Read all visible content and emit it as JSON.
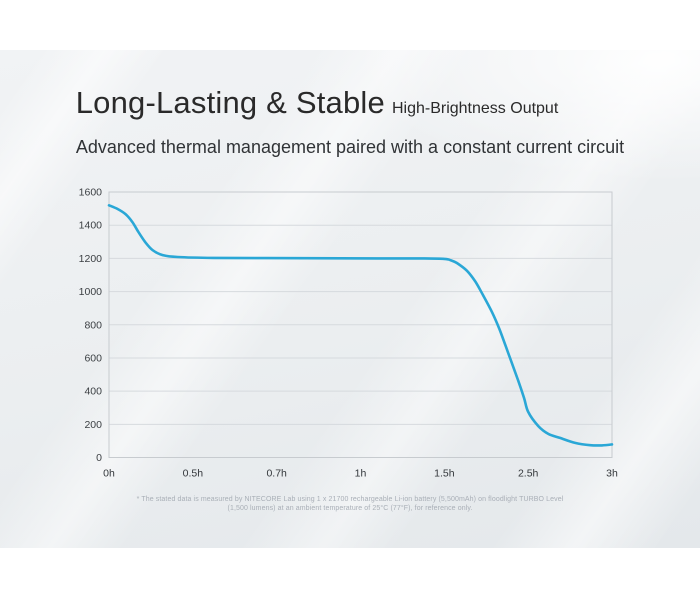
{
  "header": {
    "title": "Long-Lasting & Stable",
    "title_suffix": "High-Brightness Output",
    "subtitle": "Advanced thermal management paired with a constant current circuit"
  },
  "chart_data": {
    "type": "line",
    "title": "Long-Lasting & Stable High-Brightness Output",
    "xlabel": "",
    "ylabel": "",
    "ylim": [
      0,
      1600
    ],
    "grid": true,
    "legend_position": "none",
    "x_tick_labels": [
      "0h",
      "0.5h",
      "0.7h",
      "1h",
      "1.5h",
      "2.5h",
      "3h"
    ],
    "x_tick_hours": [
      0,
      0.5,
      0.7,
      1,
      1.5,
      2.5,
      3
    ],
    "y_ticks": [
      0,
      200,
      400,
      600,
      800,
      1000,
      1200,
      1400,
      1600
    ],
    "series": [
      {
        "name": "brightness-lumens",
        "color": "#2aa7d6",
        "points": [
          [
            0,
            1520
          ],
          [
            0.05,
            1498
          ],
          [
            0.1,
            1465
          ],
          [
            0.14,
            1418
          ],
          [
            0.175,
            1360
          ],
          [
            0.215,
            1300
          ],
          [
            0.26,
            1250
          ],
          [
            0.32,
            1220
          ],
          [
            0.41,
            1208
          ],
          [
            0.55,
            1203
          ],
          [
            0.8,
            1201
          ],
          [
            1.1,
            1200
          ],
          [
            1.35,
            1200
          ],
          [
            1.5,
            1197
          ],
          [
            1.58,
            1188
          ],
          [
            1.65,
            1172
          ],
          [
            1.77,
            1125
          ],
          [
            1.87,
            1060
          ],
          [
            1.96,
            980
          ],
          [
            2.07,
            875
          ],
          [
            2.16,
            770
          ],
          [
            2.28,
            605
          ],
          [
            2.38,
            465
          ],
          [
            2.45,
            360
          ],
          [
            2.5,
            275
          ],
          [
            2.56,
            190
          ],
          [
            2.62,
            142
          ],
          [
            2.69,
            118
          ],
          [
            2.78,
            88
          ],
          [
            2.87,
            74
          ],
          [
            2.94,
            73
          ],
          [
            3,
            79
          ]
        ]
      }
    ]
  },
  "footnote": {
    "line1": "* The stated data is measured by NITECORE Lab using 1 x 21700 rechargeable Li-ion battery (5,500mAh) on floodlight TURBO Level",
    "line2": "(1,500 lumens) at an ambient temperature of 25°C (77°F), for reference only."
  },
  "colors": {
    "line": "#2aa7d6",
    "grid": "#d6dade",
    "plot_border": "#c7cbcf",
    "axis_text": "#3b3f43",
    "title_text": "#2a2a2a",
    "footnote_text": "#a9afb7",
    "band_light": "#f1f3f5",
    "band_dark": "#e4e8eb"
  }
}
